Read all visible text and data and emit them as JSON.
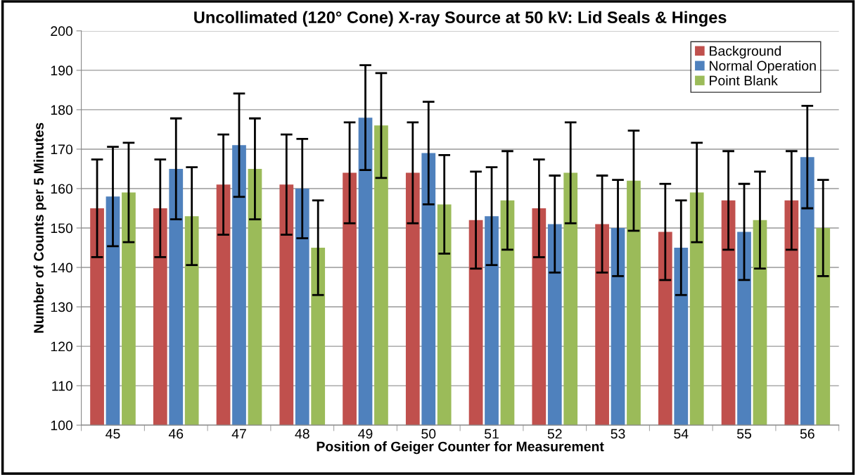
{
  "chart_data": {
    "type": "bar",
    "title": "Uncollimated (120° Cone) X-ray Source at 50 kV: Lid Seals & Hinges",
    "xlabel": "Position of Geiger Counter for Measurement",
    "ylabel": "Number of Counts per 5 Minutes",
    "categories": [
      "45",
      "46",
      "47",
      "48",
      "49",
      "50",
      "51",
      "52",
      "53",
      "54",
      "55",
      "56"
    ],
    "series": [
      {
        "name": "Background",
        "color": "#c0504d",
        "values": [
          155,
          155,
          161,
          161,
          164,
          164,
          152,
          155,
          151,
          149,
          157,
          157
        ],
        "errors": [
          12.4,
          12.4,
          12.7,
          12.7,
          12.8,
          12.8,
          12.3,
          12.4,
          12.3,
          12.2,
          12.5,
          12.5
        ]
      },
      {
        "name": "Normal Operation",
        "color": "#4f81bd",
        "values": [
          158,
          165,
          171,
          160,
          178,
          169,
          153,
          151,
          150,
          145,
          149,
          168
        ],
        "errors": [
          12.6,
          12.8,
          13.1,
          12.6,
          13.3,
          13.0,
          12.4,
          12.3,
          12.2,
          12.0,
          12.2,
          13.0
        ]
      },
      {
        "name": "Point Blank",
        "color": "#9bbb59",
        "values": [
          159,
          153,
          165,
          145,
          176,
          156,
          157,
          164,
          162,
          159,
          152,
          150
        ],
        "errors": [
          12.6,
          12.4,
          12.8,
          12.0,
          13.3,
          12.5,
          12.5,
          12.8,
          12.7,
          12.6,
          12.3,
          12.2
        ]
      }
    ],
    "ylim": [
      100,
      200
    ],
    "yticks": [
      100,
      110,
      120,
      130,
      140,
      150,
      160,
      170,
      180,
      190,
      200
    ],
    "grid": "y",
    "legend": "top right"
  }
}
